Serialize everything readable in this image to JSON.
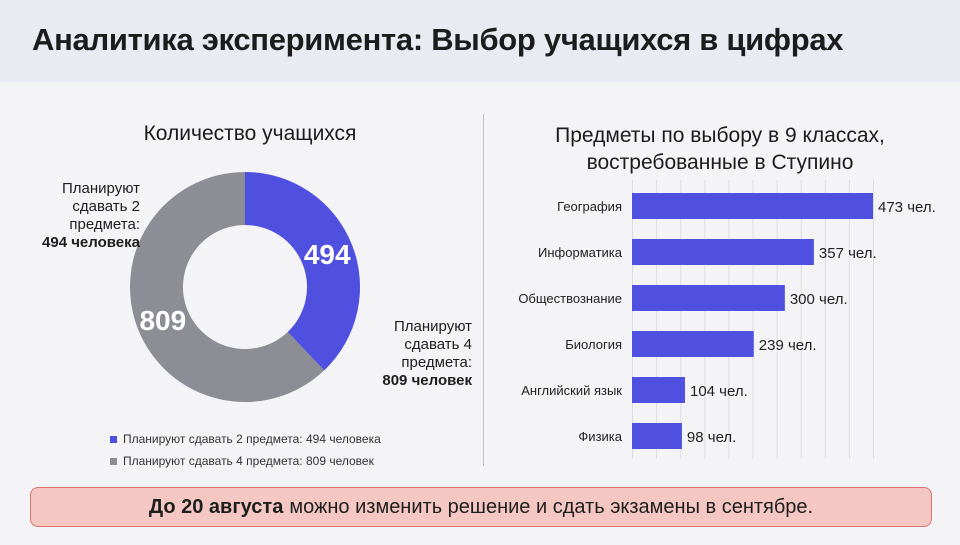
{
  "header": {
    "title": "Аналитика эксперимента: Выбор учащихся в цифрах"
  },
  "colors": {
    "primary": "#5050e0",
    "secondary": "#8d8d96",
    "footer_bg": "#f4c7c3",
    "footer_border": "#d9746c"
  },
  "chart_data": [
    {
      "type": "pie",
      "title": "Количество учащихся",
      "slices": [
        {
          "label": "Планируют сдавать 2 предмета: 494 человека",
          "value": 494,
          "display": "494",
          "color": "#5050e0"
        },
        {
          "label": "Планируют сдавать 4 предмета: 809 человек",
          "value": 809,
          "display": "809",
          "color": "#8d8d96"
        }
      ],
      "legend": "bottom-left",
      "callouts": {
        "left": {
          "text": "Планируют сдавать 2 предмета:",
          "strong": "494 человека"
        },
        "right": {
          "text": "Планируют сдавать 4 предмета:",
          "strong": "809 человек"
        }
      }
    },
    {
      "type": "bar",
      "orientation": "horizontal",
      "title_line1": "Предметы по выбору в 9 классах,",
      "title_line2": "востребованные в Ступино",
      "categories": [
        "География",
        "Информатика",
        "Обществознание",
        "Биология",
        "Английский язык",
        "Физика"
      ],
      "values": [
        473,
        357,
        300,
        239,
        104,
        98
      ],
      "value_labels": [
        "473 чел.",
        "357 чел.",
        "300 чел.",
        "239 чел.",
        "104 чел.",
        "98 чел."
      ],
      "xlim": [
        0,
        473
      ],
      "grid": true,
      "color": "#5050e0"
    }
  ],
  "footer": {
    "strong": "До 20 августа",
    "text": "можно изменить решение и сдать экзамены в сентябре."
  }
}
